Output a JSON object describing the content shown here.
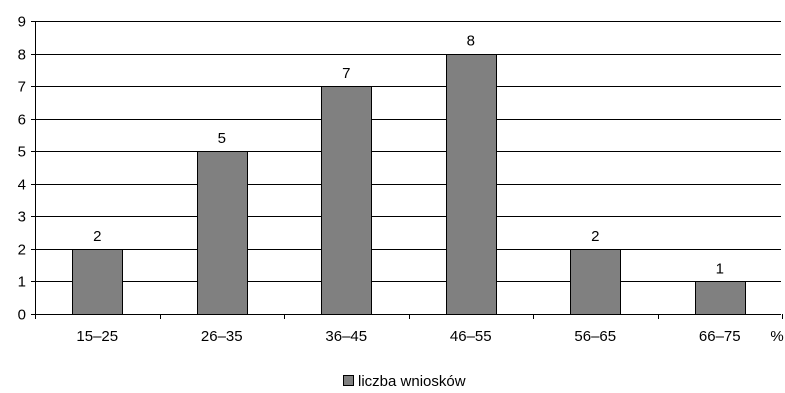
{
  "chart_data": {
    "type": "bar",
    "categories": [
      "15–25",
      "26–35",
      "36–45",
      "46–55",
      "56–65",
      "66–75"
    ],
    "series": [
      {
        "name": "liczba wniosków",
        "values": [
          2,
          5,
          7,
          8,
          2,
          1
        ],
        "color": "#808080"
      }
    ],
    "title": "",
    "xlabel": "%",
    "ylabel": "",
    "ylim": [
      0,
      9
    ],
    "yticks": [
      0,
      1,
      2,
      3,
      4,
      5,
      6,
      7,
      8,
      9
    ],
    "grid": true,
    "data_labels": true,
    "legend_position": "bottom"
  },
  "colors": {
    "bar_fill": "#808080",
    "bar_stroke": "#000000",
    "grid": "#000000",
    "axis": "#000000"
  }
}
